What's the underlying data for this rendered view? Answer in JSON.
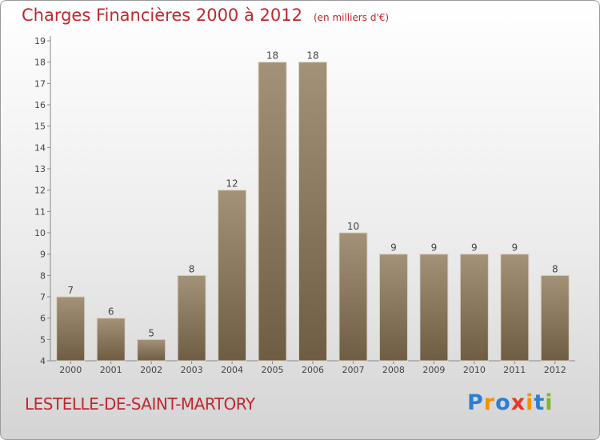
{
  "header": {
    "title": "Charges Financières 2000 à 2012",
    "subtitle": "(en milliers d'€)"
  },
  "footer": {
    "city": "LESTELLE-DE-SAINT-MARTORY",
    "logo_letters": [
      {
        "char": "P",
        "color": "#2a7fd4"
      },
      {
        "char": "r",
        "color": "#f29400"
      },
      {
        "char": "o",
        "color": "#2a7fd4"
      },
      {
        "char": "x",
        "color": "#e4392b"
      },
      {
        "char": "i",
        "color": "#f29400"
      },
      {
        "char": "t",
        "color": "#2a7fd4"
      },
      {
        "char": "i",
        "color": "#7cb928"
      }
    ]
  },
  "colors": {
    "bar_top": "#a39278",
    "bar_bottom": "#6f5d43",
    "title": "#c1272d",
    "text": "#444444"
  },
  "chart_data": {
    "type": "bar",
    "title": "Charges Financières 2000 à 2012",
    "subtitle": "(en milliers d'€)",
    "xlabel": "",
    "ylabel": "",
    "categories": [
      "2000",
      "2001",
      "2002",
      "2003",
      "2004",
      "2005",
      "2006",
      "2007",
      "2008",
      "2009",
      "2010",
      "2011",
      "2012"
    ],
    "values": [
      7,
      6,
      5,
      8,
      12,
      18,
      18,
      10,
      9,
      9,
      9,
      9,
      8
    ],
    "ylim": [
      4,
      19
    ],
    "yticks": [
      4,
      5,
      6,
      7,
      8,
      9,
      10,
      11,
      12,
      13,
      14,
      15,
      16,
      17,
      18,
      19
    ],
    "grid": false,
    "legend": "none"
  }
}
